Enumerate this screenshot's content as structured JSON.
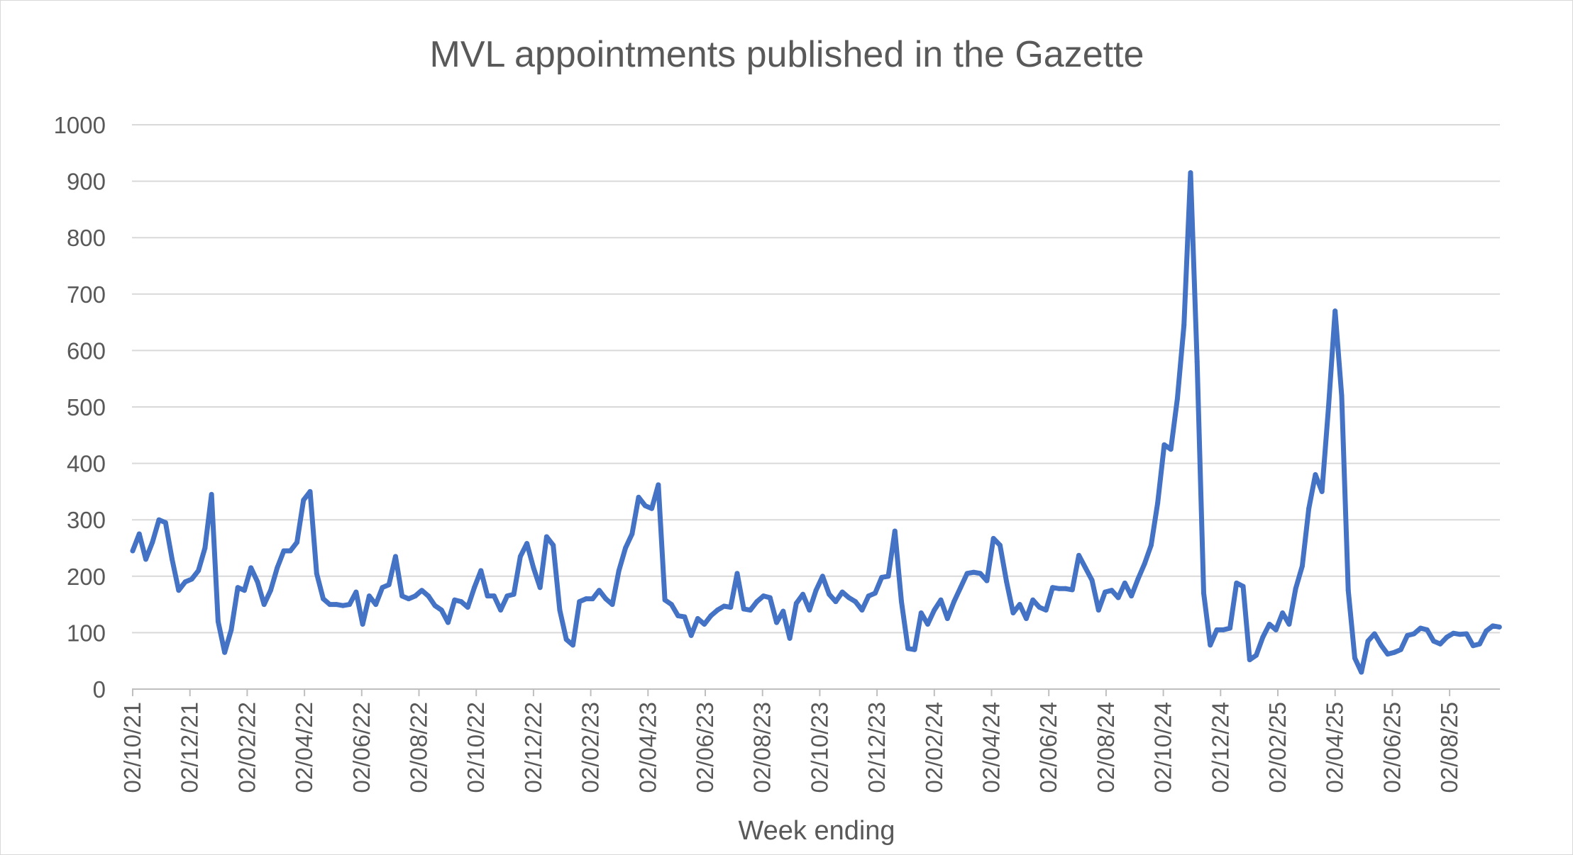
{
  "chart_data": {
    "type": "line",
    "title": "MVL appointments published in the Gazette",
    "xlabel": "Week ending",
    "ylabel": "",
    "ylim": [
      0,
      1000
    ],
    "y_ticks": [
      0,
      100,
      200,
      300,
      400,
      500,
      600,
      700,
      800,
      900,
      1000
    ],
    "x_tick_labels": [
      "02/10/21",
      "02/12/21",
      "02/02/22",
      "02/04/22",
      "02/06/22",
      "02/08/22",
      "02/10/22",
      "02/12/22",
      "02/02/23",
      "02/04/23",
      "02/06/23",
      "02/08/23",
      "02/10/23",
      "02/12/23",
      "02/02/24",
      "02/04/24",
      "02/06/24",
      "02/08/24",
      "02/10/24",
      "02/12/24",
      "02/02/25",
      "02/04/25",
      "02/06/25",
      "02/08/25"
    ],
    "grid": true,
    "legend": "none",
    "series_color": "#4472c4",
    "series": [
      {
        "values": [
          245,
          275,
          230,
          260,
          300,
          295,
          230,
          175,
          190,
          195,
          210,
          250,
          345,
          120,
          65,
          105,
          180,
          175,
          215,
          190,
          150,
          175,
          215,
          245,
          245,
          260,
          335,
          350,
          205,
          160,
          150,
          150,
          148,
          150,
          172,
          115,
          165,
          150,
          180,
          185,
          235,
          165,
          160,
          165,
          175,
          165,
          148,
          140,
          118,
          158,
          155,
          145,
          180,
          210,
          165,
          165,
          140,
          165,
          168,
          235,
          258,
          215,
          180,
          270,
          255,
          140,
          88,
          78,
          155,
          160,
          160,
          175,
          160,
          150,
          210,
          250,
          275,
          340,
          325,
          320,
          362,
          158,
          150,
          130,
          128,
          95,
          125,
          115,
          130,
          140,
          147,
          145,
          205,
          142,
          140,
          155,
          165,
          162,
          118,
          138,
          90,
          152,
          168,
          140,
          175,
          200,
          168,
          155,
          172,
          162,
          155,
          140,
          165,
          170,
          198,
          200,
          280,
          155,
          72,
          70,
          135,
          115,
          140,
          158,
          125,
          155,
          180,
          205,
          207,
          205,
          192,
          267,
          255,
          190,
          135,
          150,
          125,
          158,
          145,
          140,
          180,
          178,
          178,
          176,
          237,
          215,
          193,
          140,
          172,
          175,
          162,
          188,
          165,
          195,
          222,
          255,
          330,
          433,
          425,
          515,
          645,
          915,
          580,
          170,
          78,
          105,
          105,
          108,
          188,
          182,
          52,
          60,
          92,
          115,
          105,
          135,
          115,
          178,
          218,
          320,
          380,
          350,
          500,
          670,
          520,
          175,
          55,
          30,
          85,
          98,
          78,
          62,
          65,
          70,
          95,
          98,
          108,
          105,
          85,
          80,
          92,
          99,
          97,
          98,
          77,
          80,
          103,
          112,
          110
        ]
      }
    ]
  }
}
